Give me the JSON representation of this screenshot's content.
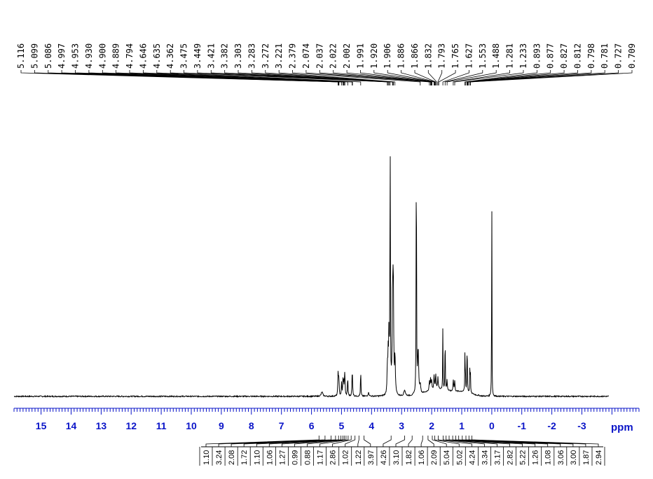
{
  "chart_data": {
    "type": "line",
    "title": "",
    "xlabel": "ppm",
    "ylabel": "",
    "xlim": [
      15.9,
      -4.9
    ],
    "x_reversed": true,
    "x_ticks": [
      15,
      14,
      13,
      12,
      11,
      10,
      9,
      8,
      7,
      6,
      5,
      4,
      3,
      2,
      1,
      0,
      -1,
      -2,
      -3
    ],
    "peak_labels": [
      5.116,
      5.099,
      5.086,
      4.997,
      4.953,
      4.93,
      4.9,
      4.889,
      4.794,
      4.646,
      4.635,
      4.362,
      3.475,
      3.449,
      3.421,
      3.382,
      3.303,
      3.283,
      3.272,
      3.221,
      2.379,
      2.074,
      2.037,
      2.022,
      2.002,
      1.991,
      1.92,
      1.906,
      1.886,
      1.866,
      1.832,
      1.793,
      1.765,
      1.627,
      1.553,
      1.488,
      1.281,
      1.233,
      0.893,
      0.877,
      0.827,
      0.812,
      0.798,
      0.781,
      0.727,
      0.709
    ],
    "peak_label_text": [
      "5.116",
      "5.099",
      "5.086",
      "4.997",
      "4.953",
      "4.930",
      "4.900",
      "4.889",
      "4.794",
      "4.646",
      "4.635",
      "4.362",
      "3.475",
      "3.449",
      "3.421",
      "3.382",
      "3.303",
      "3.283",
      "3.272",
      "3.221",
      "2.379",
      "2.074",
      "2.037",
      "2.022",
      "2.002",
      "1.991",
      "1.920",
      "1.906",
      "1.886",
      "1.866",
      "1.832",
      "1.793",
      "1.765",
      "1.627",
      "1.553",
      "1.488",
      "1.281",
      "1.233",
      "0.893",
      "0.877",
      "0.827",
      "0.812",
      "0.798",
      "0.781",
      "0.727",
      "0.709"
    ],
    "integrals": [
      "1.10",
      "3.24",
      "2.08",
      "1.72",
      "1.10",
      "1.06",
      "1.27",
      "0.99",
      "0.88",
      "1.17",
      "2.86",
      "1.02",
      "1.22",
      "3.97",
      "4.26",
      "3.10",
      "1.82",
      "1.06",
      "2.09",
      "5.04",
      "5.02",
      "4.24",
      "3.34",
      "3.17",
      "2.82",
      "5.22",
      "1.26",
      "1.08",
      "3.06",
      "3.00",
      "1.87",
      "2.94"
    ],
    "integral_ppm": [
      5.75,
      5.55,
      5.35,
      5.2,
      5.1,
      5.02,
      4.96,
      4.91,
      4.85,
      4.78,
      4.68,
      4.55,
      4.42,
      4.25,
      3.35,
      2.9,
      2.65,
      2.3,
      2.12,
      1.98,
      1.9,
      1.78,
      1.62,
      1.52,
      1.42,
      1.3,
      1.2,
      1.1,
      0.98,
      0.86,
      0.76,
      0.66
    ],
    "peaks": [
      {
        "ppm": 5.65,
        "h": 0.015,
        "w": 0.03
      },
      {
        "ppm": 5.116,
        "h": 0.07,
        "w": 0.01
      },
      {
        "ppm": 5.099,
        "h": 0.04,
        "w": 0.01
      },
      {
        "ppm": 5.086,
        "h": 0.04,
        "w": 0.01
      },
      {
        "ppm": 4.997,
        "h": 0.045,
        "w": 0.01
      },
      {
        "ppm": 4.953,
        "h": 0.05,
        "w": 0.01
      },
      {
        "ppm": 4.93,
        "h": 0.045,
        "w": 0.01
      },
      {
        "ppm": 4.9,
        "h": 0.04,
        "w": 0.01
      },
      {
        "ppm": 4.889,
        "h": 0.06,
        "w": 0.01
      },
      {
        "ppm": 4.794,
        "h": 0.065,
        "w": 0.01
      },
      {
        "ppm": 4.646,
        "h": 0.06,
        "w": 0.01
      },
      {
        "ppm": 4.635,
        "h": 0.04,
        "w": 0.01
      },
      {
        "ppm": 4.362,
        "h": 0.095,
        "w": 0.008
      },
      {
        "ppm": 4.1,
        "h": 0.012,
        "w": 0.02
      },
      {
        "ppm": 3.475,
        "h": 0.09,
        "w": 0.012
      },
      {
        "ppm": 3.449,
        "h": 0.12,
        "w": 0.012
      },
      {
        "ppm": 3.421,
        "h": 0.2,
        "w": 0.012
      },
      {
        "ppm": 3.382,
        "h": 1.0,
        "w": 0.007
      },
      {
        "ppm": 3.303,
        "h": 0.33,
        "w": 0.01
      },
      {
        "ppm": 3.283,
        "h": 0.25,
        "w": 0.01
      },
      {
        "ppm": 3.272,
        "h": 0.2,
        "w": 0.01
      },
      {
        "ppm": 3.221,
        "h": 0.12,
        "w": 0.012
      },
      {
        "ppm": 2.9,
        "h": 0.02,
        "w": 0.03
      },
      {
        "ppm": 2.51,
        "h": 1.0,
        "w": 0.007
      },
      {
        "ppm": 2.45,
        "h": 0.15,
        "w": 0.02
      },
      {
        "ppm": 2.379,
        "h": 0.03,
        "w": 0.015
      },
      {
        "ppm": 2.074,
        "h": 0.03,
        "w": 0.012
      },
      {
        "ppm": 2.037,
        "h": 0.035,
        "w": 0.012
      },
      {
        "ppm": 2.002,
        "h": 0.03,
        "w": 0.012
      },
      {
        "ppm": 1.92,
        "h": 0.045,
        "w": 0.012
      },
      {
        "ppm": 1.866,
        "h": 0.05,
        "w": 0.012
      },
      {
        "ppm": 1.793,
        "h": 0.04,
        "w": 0.012
      },
      {
        "ppm": 1.627,
        "h": 0.23,
        "w": 0.006
      },
      {
        "ppm": 1.553,
        "h": 0.24,
        "w": 0.006
      },
      {
        "ppm": 1.488,
        "h": 0.035,
        "w": 0.012
      },
      {
        "ppm": 1.281,
        "h": 0.04,
        "w": 0.012
      },
      {
        "ppm": 1.233,
        "h": 0.035,
        "w": 0.012
      },
      {
        "ppm": 0.893,
        "h": 0.13,
        "w": 0.006
      },
      {
        "ppm": 0.877,
        "h": 0.09,
        "w": 0.006
      },
      {
        "ppm": 0.827,
        "h": 0.12,
        "w": 0.006
      },
      {
        "ppm": 0.812,
        "h": 0.09,
        "w": 0.006
      },
      {
        "ppm": 0.727,
        "h": 0.12,
        "w": 0.006
      },
      {
        "ppm": 0.709,
        "h": 0.06,
        "w": 0.006
      },
      {
        "ppm": 0.0,
        "h": 0.87,
        "w": 0.005
      }
    ],
    "humps": [
      {
        "ppm": 1.8,
        "h": 0.025,
        "w": 0.5
      },
      {
        "ppm": 3.3,
        "h": 0.04,
        "w": 0.1
      },
      {
        "ppm": 0.95,
        "h": 0.015,
        "w": 0.4
      }
    ],
    "grid": false,
    "colors": {
      "spectrum": "#000000",
      "axis": "#0a14c8",
      "frame": "#000000"
    }
  }
}
